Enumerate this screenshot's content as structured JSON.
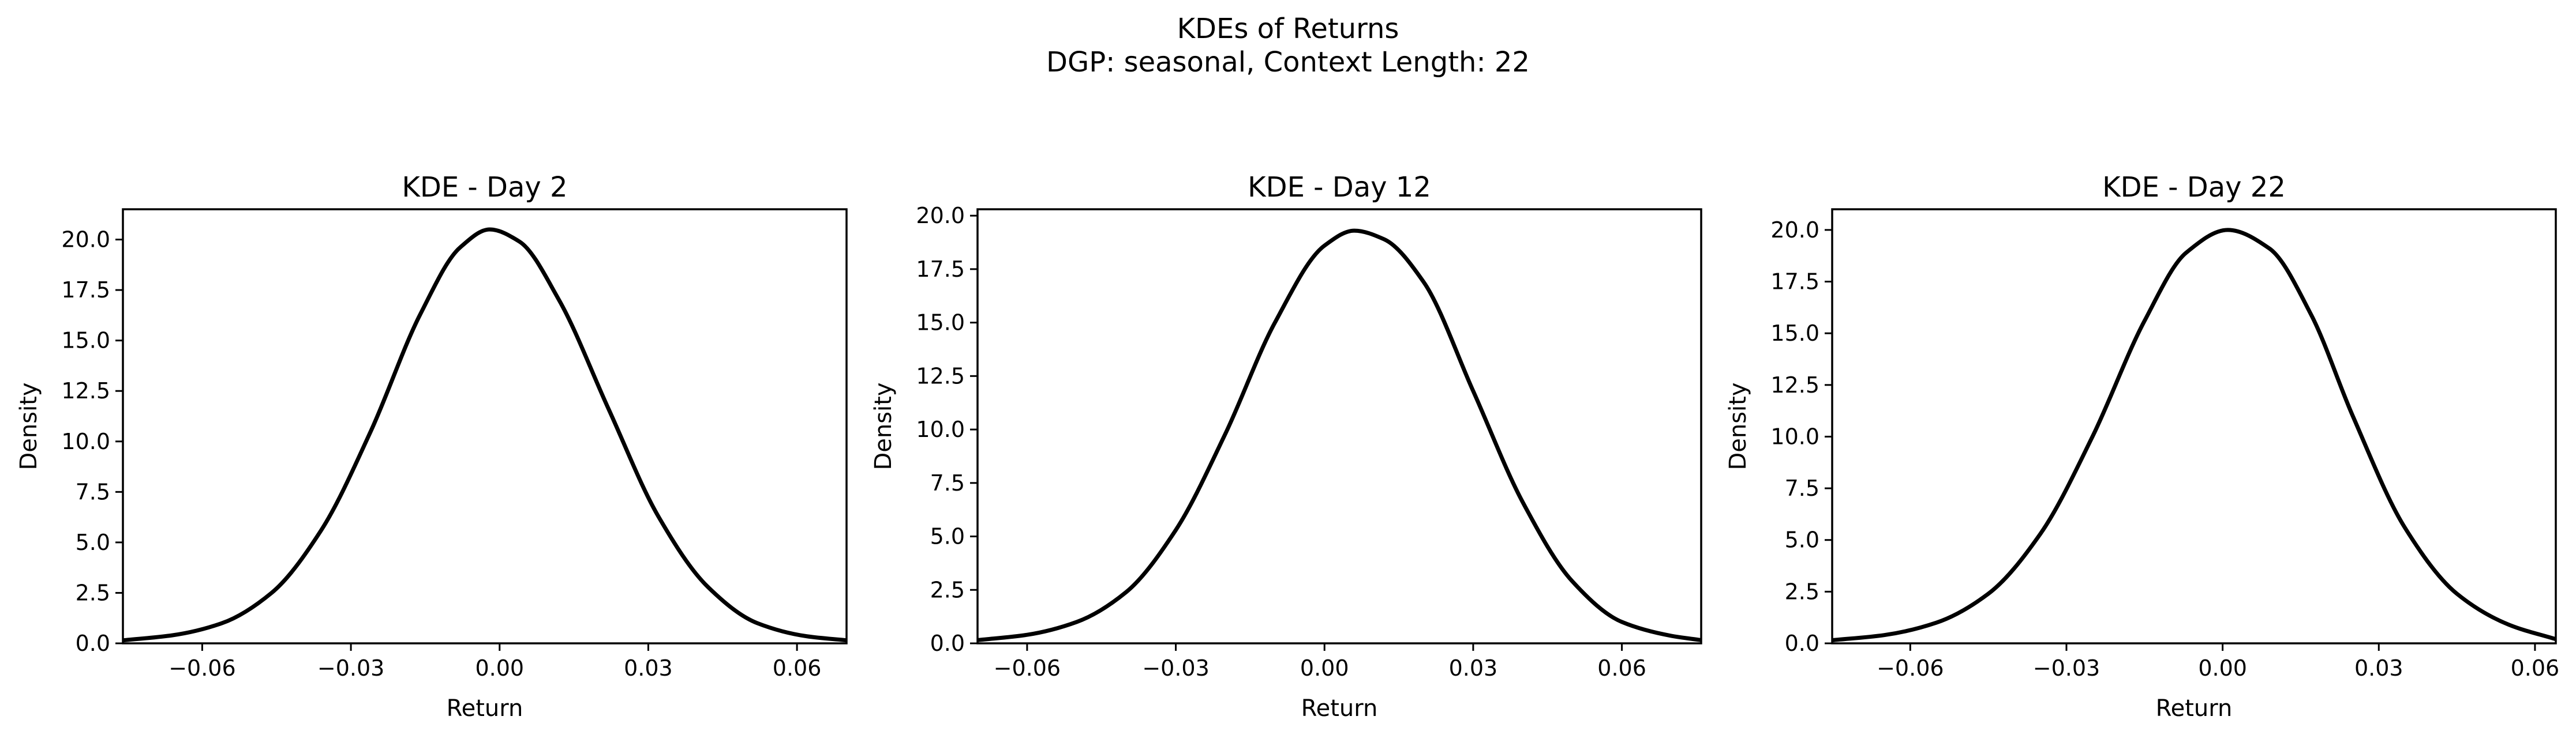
{
  "figure": {
    "title_line1": "KDEs of Returns",
    "title_line2": "DGP: seasonal, Context Length: 22"
  },
  "chart_data": [
    {
      "type": "line",
      "title": "KDE - Day 2",
      "xlabel": "Return",
      "ylabel": "Density",
      "xlim": [
        -0.076,
        0.07
      ],
      "ylim": [
        0,
        21.5
      ],
      "xticks": [
        -0.06,
        -0.03,
        0.0,
        0.03,
        0.06
      ],
      "xtick_labels": [
        "−0.06",
        "−0.03",
        "0.00",
        "0.03",
        "0.06"
      ],
      "yticks": [
        0.0,
        2.5,
        5.0,
        7.5,
        10.0,
        12.5,
        15.0,
        17.5,
        20.0
      ],
      "ytick_labels": [
        "0.0",
        "2.5",
        "5.0",
        "7.5",
        "10.0",
        "12.5",
        "15.0",
        "17.5",
        "20.0"
      ],
      "color": "#000000",
      "series": [
        {
          "x": [
            -0.076,
            -0.066,
            -0.056,
            -0.046,
            -0.036,
            -0.026,
            -0.016,
            -0.008,
            -0.002,
            0.004,
            0.012,
            0.022,
            0.032,
            0.042,
            0.052,
            0.062,
            0.07
          ],
          "values": [
            0.15,
            0.4,
            1.0,
            2.5,
            5.6,
            10.5,
            16.3,
            19.6,
            20.5,
            19.9,
            17.0,
            11.6,
            6.3,
            2.8,
            1.0,
            0.35,
            0.15
          ]
        }
      ]
    },
    {
      "type": "line",
      "title": "KDE - Day 12",
      "xlabel": "Return",
      "ylabel": "Density",
      "xlim": [
        -0.07,
        0.076
      ],
      "ylim": [
        0,
        20.3
      ],
      "xticks": [
        -0.06,
        -0.03,
        0.0,
        0.03,
        0.06
      ],
      "xtick_labels": [
        "−0.06",
        "−0.03",
        "0.00",
        "0.03",
        "0.06"
      ],
      "yticks": [
        0.0,
        2.5,
        5.0,
        7.5,
        10.0,
        12.5,
        15.0,
        17.5,
        20.0
      ],
      "ytick_labels": [
        "0.0",
        "2.5",
        "5.0",
        "7.5",
        "10.0",
        "12.5",
        "15.0",
        "17.5",
        "20.0"
      ],
      "color": "#000000",
      "series": [
        {
          "x": [
            -0.07,
            -0.06,
            -0.05,
            -0.04,
            -0.03,
            -0.02,
            -0.01,
            0.0,
            0.006,
            0.012,
            0.02,
            0.03,
            0.04,
            0.05,
            0.06,
            0.07,
            0.076
          ],
          "values": [
            0.15,
            0.4,
            1.0,
            2.4,
            5.3,
            9.8,
            15.0,
            18.6,
            19.3,
            18.9,
            16.9,
            11.8,
            6.6,
            2.9,
            1.0,
            0.35,
            0.15
          ]
        }
      ]
    },
    {
      "type": "line",
      "title": "KDE - Day 22",
      "xlabel": "Return",
      "ylabel": "Density",
      "xlim": [
        -0.075,
        0.064
      ],
      "ylim": [
        0,
        21.0
      ],
      "xticks": [
        -0.06,
        -0.03,
        0.0,
        0.03,
        0.06
      ],
      "xtick_labels": [
        "−0.06",
        "−0.03",
        "0.00",
        "0.03",
        "0.06"
      ],
      "yticks": [
        0.0,
        2.5,
        5.0,
        7.5,
        10.0,
        12.5,
        15.0,
        17.5,
        20.0
      ],
      "ytick_labels": [
        "0.0",
        "2.5",
        "5.0",
        "7.5",
        "10.0",
        "12.5",
        "15.0",
        "17.5",
        "20.0"
      ],
      "color": "#000000",
      "series": [
        {
          "x": [
            -0.075,
            -0.065,
            -0.055,
            -0.045,
            -0.035,
            -0.025,
            -0.015,
            -0.007,
            0.001,
            0.009,
            0.017,
            0.025,
            0.035,
            0.045,
            0.055,
            0.064
          ],
          "values": [
            0.15,
            0.4,
            1.0,
            2.4,
            5.3,
            10.0,
            15.6,
            18.9,
            20.0,
            19.1,
            15.9,
            11.0,
            5.6,
            2.4,
            0.9,
            0.2
          ]
        }
      ]
    }
  ]
}
